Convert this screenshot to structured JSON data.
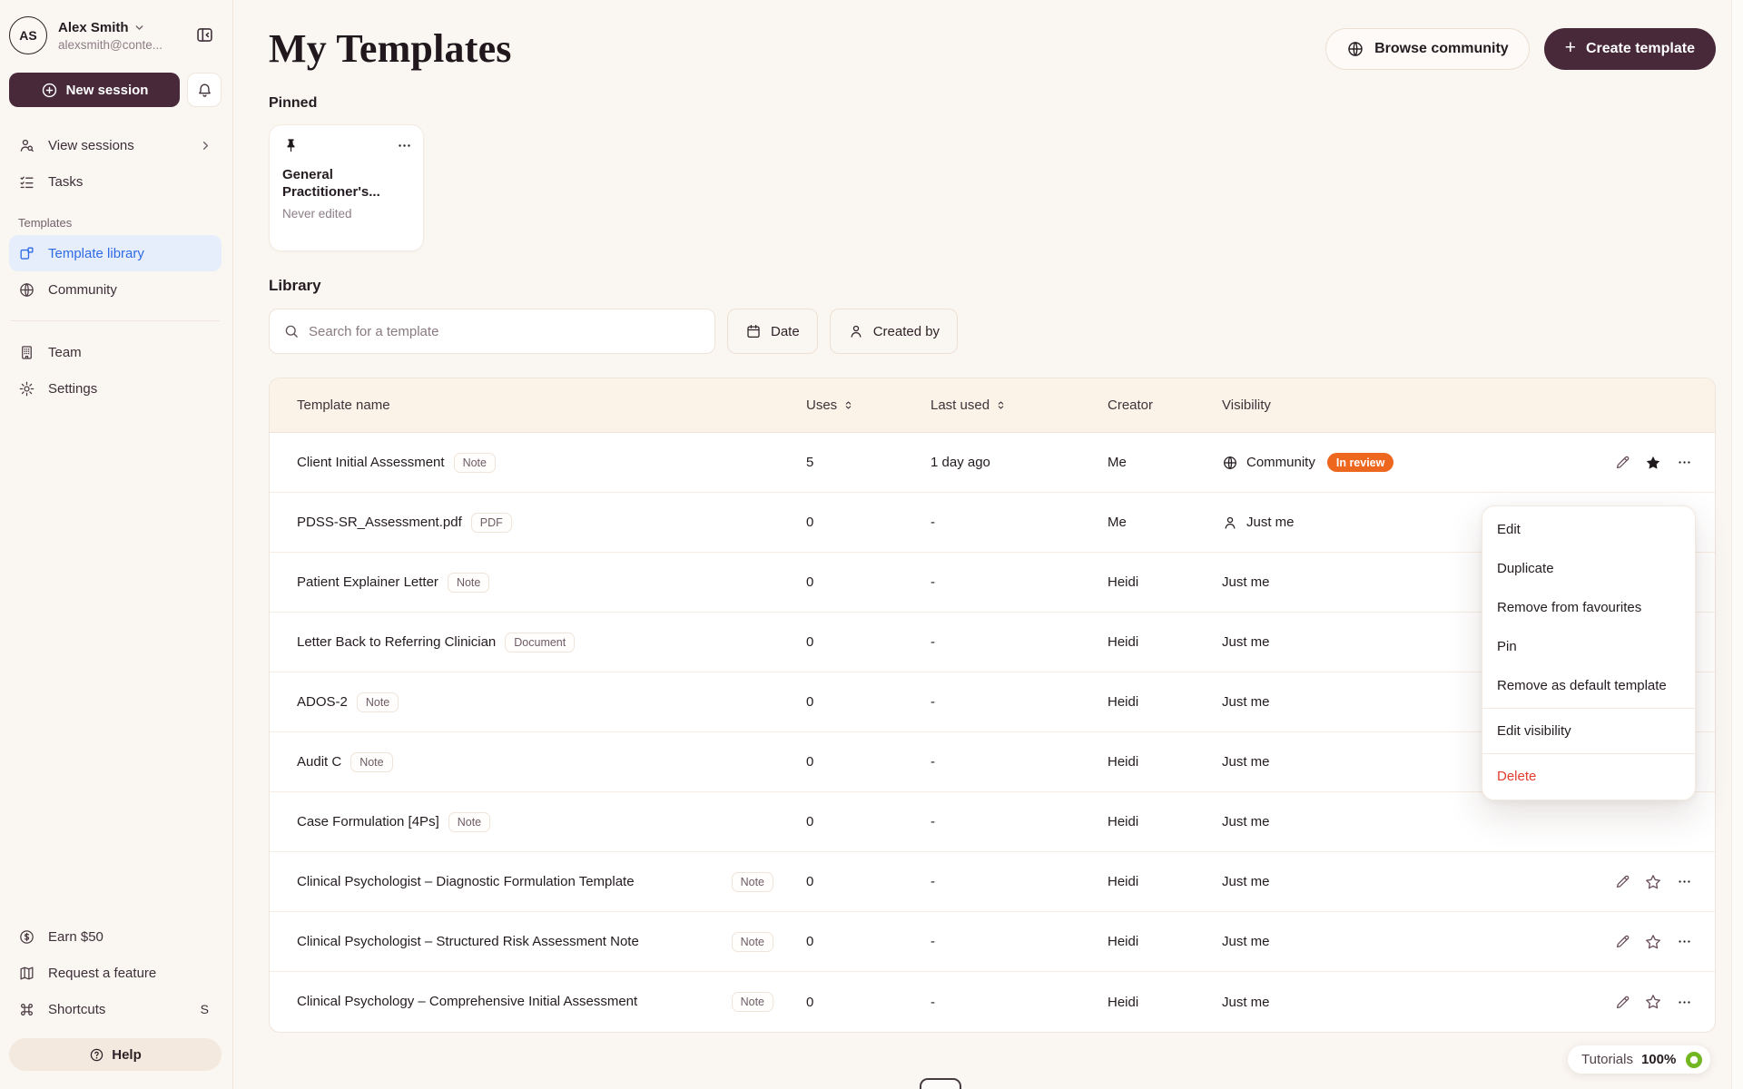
{
  "sidebar": {
    "user": {
      "initials": "AS",
      "name": "Alex Smith",
      "email": "alexsmith@conte..."
    },
    "new_session_label": "New session",
    "nav": [
      {
        "label": "View sessions"
      },
      {
        "label": "Tasks"
      }
    ],
    "templates_section_label": "Templates",
    "templates_nav": [
      {
        "label": "Template library",
        "active": true
      },
      {
        "label": "Community",
        "active": false
      }
    ],
    "secondary_nav": [
      {
        "label": "Team"
      },
      {
        "label": "Settings"
      }
    ],
    "footer_nav": [
      {
        "label": "Earn $50",
        "shortcut": ""
      },
      {
        "label": "Request a feature",
        "shortcut": ""
      },
      {
        "label": "Shortcuts",
        "shortcut": "S"
      }
    ],
    "help_label": "Help"
  },
  "header": {
    "title": "My Templates",
    "browse_community_label": "Browse community",
    "create_template_label": "Create template",
    "create_template_plus": "+"
  },
  "pinned": {
    "section_label": "Pinned",
    "card": {
      "title": "General Practitioner's...",
      "subtitle": "Never edited",
      "menu": "..."
    }
  },
  "library": {
    "section_label": "Library",
    "search_placeholder": "Search for a template",
    "search_value": "",
    "date_filter_label": "Date",
    "created_by_filter_label": "Created by"
  },
  "table": {
    "columns": [
      "Template name",
      "Uses",
      "Last used",
      "Creator",
      "Visibility"
    ],
    "rows": [
      {
        "name": "Client Initial Assessment",
        "badge": "Note",
        "badge_at_end": false,
        "uses": "5",
        "last_used": "1 day ago",
        "creator": "Me",
        "visibility": "Community",
        "visibility_icon": "globe",
        "status": "In review",
        "actions": "pinned-favourite"
      },
      {
        "name": "PDSS-SR_Assessment.pdf",
        "badge": "PDF",
        "badge_at_end": false,
        "uses": "0",
        "last_used": "-",
        "creator": "Me",
        "visibility": "Just me",
        "visibility_icon": "person",
        "status": null,
        "actions": null
      },
      {
        "name": "Patient Explainer Letter",
        "badge": "Note",
        "badge_at_end": false,
        "uses": "0",
        "last_used": "-",
        "creator": "Heidi",
        "visibility": "Just me",
        "visibility_icon": null,
        "status": null,
        "actions": null
      },
      {
        "name": "Letter Back to Referring Clinician",
        "badge": "Document",
        "badge_at_end": false,
        "uses": "0",
        "last_used": "-",
        "creator": "Heidi",
        "visibility": "Just me",
        "visibility_icon": null,
        "status": null,
        "actions": null
      },
      {
        "name": "ADOS-2",
        "badge": "Note",
        "badge_at_end": false,
        "uses": "0",
        "last_used": "-",
        "creator": "Heidi",
        "visibility": "Just me",
        "visibility_icon": null,
        "status": null,
        "actions": null
      },
      {
        "name": "Audit C",
        "badge": "Note",
        "badge_at_end": false,
        "uses": "0",
        "last_used": "-",
        "creator": "Heidi",
        "visibility": "Just me",
        "visibility_icon": null,
        "status": null,
        "actions": null
      },
      {
        "name": "Case Formulation [4Ps]",
        "badge": "Note",
        "badge_at_end": false,
        "uses": "0",
        "last_used": "-",
        "creator": "Heidi",
        "visibility": "Just me",
        "visibility_icon": null,
        "status": null,
        "actions": null
      },
      {
        "name": "Clinical Psychologist – Diagnostic Formulation Template",
        "badge": "Note",
        "badge_at_end": true,
        "uses": "0",
        "last_used": "-",
        "creator": "Heidi",
        "visibility": "Just me",
        "visibility_icon": null,
        "status": null,
        "actions": "default"
      },
      {
        "name": "Clinical Psychologist – Structured Risk Assessment Note",
        "badge": "Note",
        "badge_at_end": true,
        "uses": "0",
        "last_used": "-",
        "creator": "Heidi",
        "visibility": "Just me",
        "visibility_icon": null,
        "status": null,
        "actions": "default"
      },
      {
        "name": "Clinical Psychology – Comprehensive Initial Assessment",
        "badge": "Note",
        "badge_at_end": true,
        "uses": "0",
        "last_used": "-",
        "creator": "Heidi",
        "visibility": "Just me",
        "visibility_icon": null,
        "status": null,
        "actions": "default"
      }
    ]
  },
  "context_menu": {
    "items": [
      {
        "label": "Edit",
        "danger": false,
        "divider_before": false
      },
      {
        "label": "Duplicate",
        "danger": false,
        "divider_before": false
      },
      {
        "label": "Remove from favourites",
        "danger": false,
        "divider_before": false
      },
      {
        "label": "Pin",
        "danger": false,
        "divider_before": false
      },
      {
        "label": "Remove as default template",
        "danger": false,
        "divider_before": false
      },
      {
        "label": "Edit visibility",
        "danger": false,
        "divider_before": true
      },
      {
        "label": "Delete",
        "danger": true,
        "divider_before": true
      }
    ]
  },
  "status_bar": {
    "tutorials_label": "Tutorials",
    "progress": "100%"
  },
  "colors": {
    "accent_maroon": "#482939",
    "active_blue": "#2E6BE5",
    "status_orange": "#ED671E",
    "danger_red": "#E23B2E",
    "progress_green": "#72B621",
    "page_background": "#FAF6F1",
    "table_header_background": "#FBF2E8"
  }
}
